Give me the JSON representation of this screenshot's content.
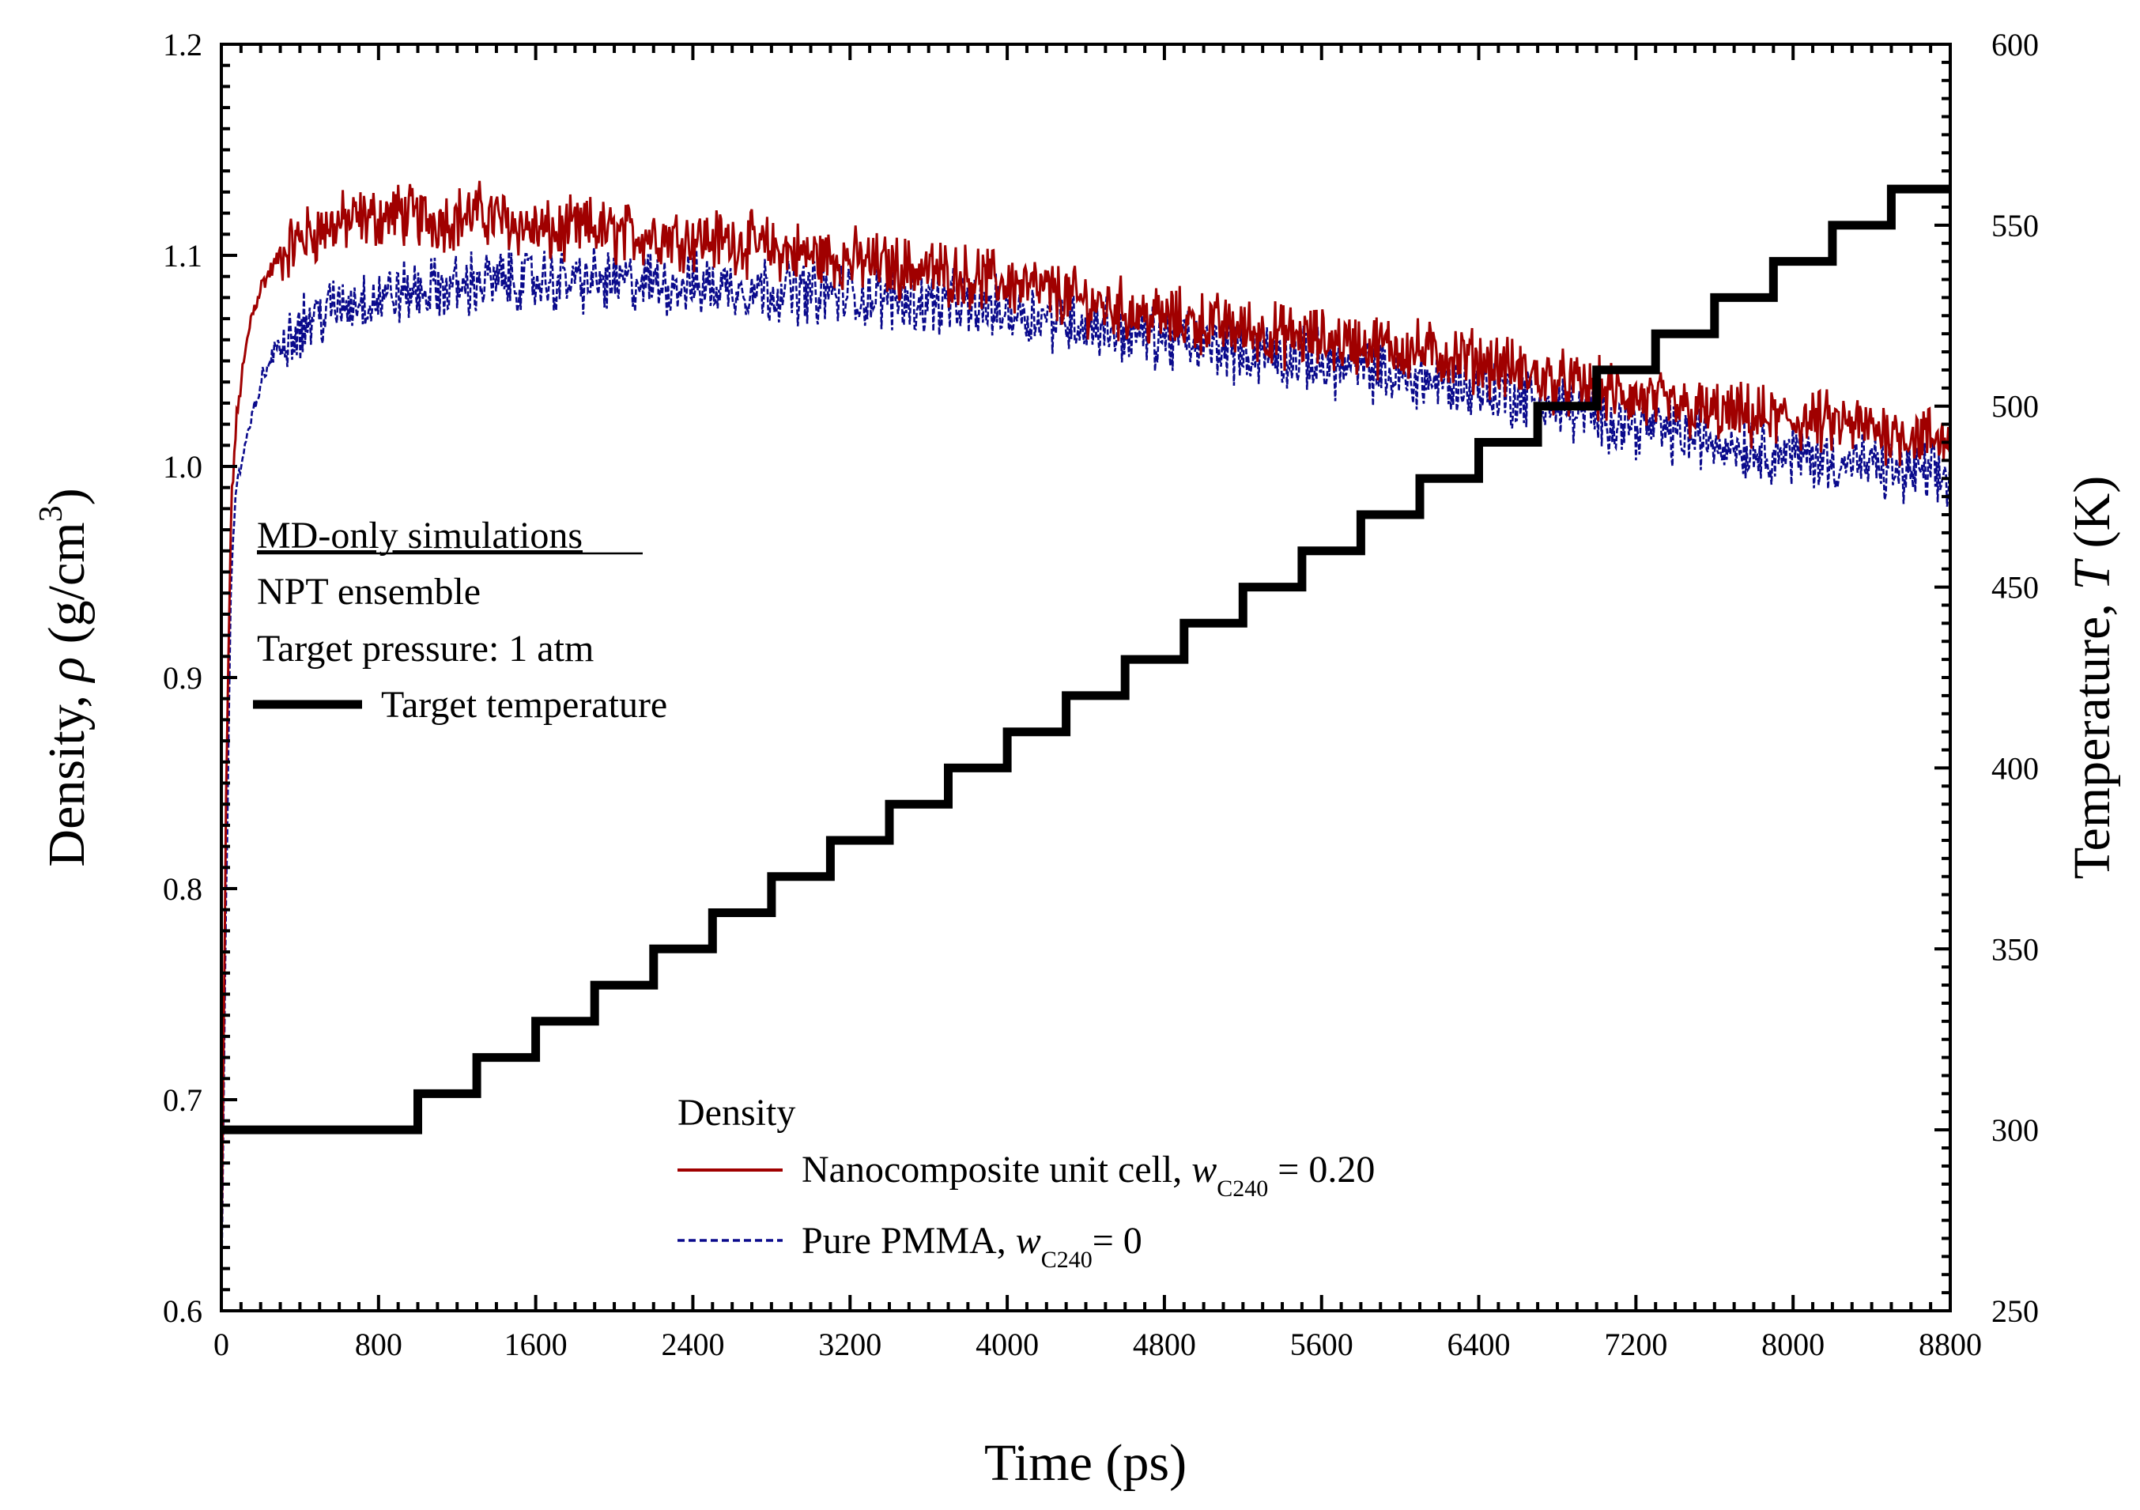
{
  "chart_data": {
    "type": "line",
    "xlabel": "Time (ps)",
    "ylabel_left": {
      "prefix": "Density, ",
      "symbol": "ρ",
      "unit_prefix": " (g/cm",
      "unit_exp": "3",
      "unit_suffix": ")"
    },
    "ylabel_right": {
      "prefix": "Temperature, ",
      "symbol": "T",
      "suffix": " (K)"
    },
    "xlim": [
      0,
      8800
    ],
    "ylim_left": [
      0.6,
      1.2
    ],
    "ylim_right": [
      250,
      600
    ],
    "x_ticks": [
      "0",
      "800",
      "1600",
      "2400",
      "3200",
      "4000",
      "4800",
      "5600",
      "6400",
      "7200",
      "8000",
      "8800"
    ],
    "y_left_ticks": [
      "0.6",
      "0.7",
      "0.8",
      "0.9",
      "1.0",
      "1.1",
      "1.2"
    ],
    "y_right_ticks": [
      "250",
      "300",
      "350",
      "400",
      "450",
      "500",
      "550",
      "600"
    ],
    "annotation": {
      "line1": "MD-only simulations",
      "line2": "NPT ensemble",
      "line3": "Target pressure: 1 atm"
    },
    "legend_top": {
      "label": "Target temperature"
    },
    "legend_bottom": {
      "title": "Density",
      "entry1": {
        "prefix": "Nanocomposite unit cell, ",
        "var": "w",
        "sub": "C240",
        "suffix": " = 0.20"
      },
      "entry2": {
        "prefix": "Pure PMMA, ",
        "var": "w",
        "sub": "C240",
        "suffix": "= 0"
      }
    },
    "series": [
      {
        "name": "Nanocomposite unit cell",
        "axis": "left",
        "color": "#a00000",
        "style": "solid",
        "x": [
          0,
          25,
          50,
          75,
          100,
          150,
          200,
          300,
          400,
          500,
          600,
          700,
          800,
          900,
          1000,
          1100,
          1200,
          1300,
          1400,
          1500,
          1600,
          1700,
          1800,
          1900,
          2000,
          2200,
          2400,
          2600,
          2800,
          3000,
          3200,
          3400,
          3600,
          3800,
          4000,
          4200,
          4400,
          4600,
          4800,
          5000,
          5200,
          5400,
          5600,
          5800,
          6000,
          6200,
          6400,
          6600,
          6800,
          7000,
          7200,
          7400,
          7600,
          7800,
          8000,
          8200,
          8400,
          8600,
          8800
        ],
        "values": [
          0.62,
          0.85,
          0.98,
          1.02,
          1.04,
          1.07,
          1.085,
          1.1,
          1.108,
          1.112,
          1.115,
          1.117,
          1.118,
          1.12,
          1.118,
          1.117,
          1.118,
          1.12,
          1.118,
          1.115,
          1.112,
          1.11,
          1.112,
          1.113,
          1.11,
          1.11,
          1.108,
          1.107,
          1.103,
          1.1,
          1.098,
          1.095,
          1.093,
          1.09,
          1.087,
          1.083,
          1.078,
          1.074,
          1.07,
          1.068,
          1.065,
          1.062,
          1.06,
          1.058,
          1.056,
          1.053,
          1.05,
          1.045,
          1.04,
          1.036,
          1.032,
          1.028,
          1.025,
          1.023,
          1.022,
          1.02,
          1.018,
          1.015,
          1.012
        ]
      },
      {
        "name": "Pure PMMA",
        "axis": "left",
        "color": "#0a0a8c",
        "style": "dashed",
        "x": [
          0,
          25,
          50,
          75,
          100,
          150,
          200,
          300,
          400,
          500,
          600,
          700,
          800,
          900,
          1000,
          1100,
          1200,
          1300,
          1400,
          1500,
          1600,
          1700,
          1800,
          1900,
          2000,
          2200,
          2400,
          2600,
          2800,
          3000,
          3200,
          3400,
          3600,
          3800,
          4000,
          4200,
          4400,
          4600,
          4800,
          5000,
          5200,
          5400,
          5600,
          5800,
          6000,
          6200,
          6400,
          6600,
          6800,
          7000,
          7200,
          7400,
          7600,
          7800,
          8000,
          8200,
          8400,
          8600,
          8800
        ],
        "values": [
          0.61,
          0.8,
          0.95,
          0.99,
          1.0,
          1.02,
          1.04,
          1.06,
          1.067,
          1.072,
          1.076,
          1.079,
          1.08,
          1.082,
          1.083,
          1.084,
          1.085,
          1.087,
          1.088,
          1.088,
          1.088,
          1.088,
          1.088,
          1.088,
          1.087,
          1.087,
          1.086,
          1.085,
          1.084,
          1.083,
          1.081,
          1.08,
          1.078,
          1.076,
          1.074,
          1.071,
          1.068,
          1.064,
          1.061,
          1.058,
          1.055,
          1.052,
          1.049,
          1.046,
          1.043,
          1.04,
          1.037,
          1.033,
          1.028,
          1.024,
          1.02,
          1.016,
          1.012,
          1.009,
          1.006,
          1.003,
          1.0,
          0.997,
          0.994
        ]
      },
      {
        "name": "Target temperature",
        "axis": "right",
        "color": "#000000",
        "style": "step",
        "x": [
          0,
          1000,
          1000,
          1300,
          1300,
          1600,
          1600,
          1900,
          1900,
          2200,
          2200,
          2500,
          2500,
          2800,
          2800,
          3100,
          3100,
          3400,
          3400,
          3700,
          3700,
          4000,
          4000,
          4300,
          4300,
          4600,
          4600,
          4900,
          4900,
          5200,
          5200,
          5500,
          5500,
          5800,
          5800,
          6100,
          6100,
          6400,
          6400,
          6700,
          6700,
          7000,
          7000,
          7300,
          7300,
          7600,
          7600,
          7900,
          7900,
          8200,
          8200,
          8500,
          8500,
          8800
        ],
        "values": [
          300,
          300,
          310,
          310,
          320,
          320,
          330,
          330,
          340,
          340,
          350,
          350,
          360,
          360,
          370,
          370,
          380,
          380,
          390,
          390,
          400,
          400,
          410,
          410,
          420,
          420,
          430,
          430,
          440,
          440,
          450,
          450,
          460,
          460,
          470,
          470,
          480,
          480,
          490,
          490,
          500,
          500,
          510,
          510,
          520,
          520,
          530,
          530,
          540,
          540,
          550,
          550,
          560,
          560
        ]
      }
    ]
  }
}
